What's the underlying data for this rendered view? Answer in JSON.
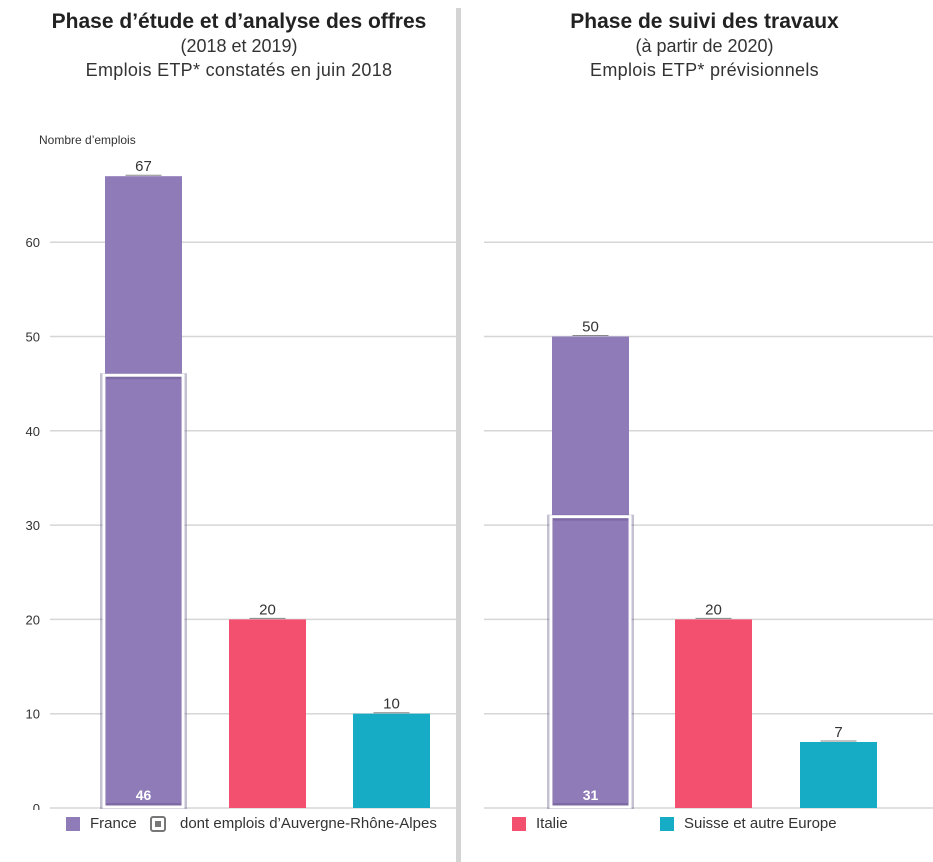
{
  "panels": {
    "left": {
      "title": "Phase d’étude et d’analyse des offres",
      "subtitle1": "(2018 et 2019)",
      "subtitle2": "Emplois ETP* constatés en juin 2018"
    },
    "right": {
      "title": "Phase de suivi des travaux",
      "subtitle1": "(à partir de 2020)",
      "subtitle2": "Emplois ETP* prévisionnels"
    }
  },
  "ylabel": "Nombre d’emplois",
  "legend": {
    "france": "France",
    "aura": "dont emplois d’Auvergne-Rhône-Alpes",
    "italie": "Italie",
    "suisse": "Suisse et autre Europe"
  },
  "colors": {
    "france": "#8f7bb8",
    "italie": "#f2506e",
    "suisse": "#17acc6",
    "grid": "#d6d6d6",
    "outline": "#ffffff"
  },
  "chart_data": [
    {
      "type": "bar",
      "title": "Phase d’étude et d’analyse des offres",
      "ylabel": "Nombre d’emplois",
      "ylim": [
        0,
        70
      ],
      "yticks": [
        0,
        10,
        20,
        30,
        40,
        50,
        60
      ],
      "grid": true,
      "categories": [
        "France",
        "Italie",
        "Suisse et autre Europe"
      ],
      "values": [
        67,
        20,
        10
      ],
      "value_labels": [
        "67",
        "20",
        "10"
      ],
      "subset": {
        "name": "dont emplois d’Auvergne-Rhône-Alpes",
        "category": "France",
        "value": 46,
        "label": "46"
      }
    },
    {
      "type": "bar",
      "title": "Phase de suivi des travaux",
      "ylim": [
        0,
        70
      ],
      "grid": true,
      "categories": [
        "France",
        "Italie",
        "Suisse et autre Europe"
      ],
      "values": [
        50,
        20,
        7
      ],
      "value_labels": [
        "50",
        "20",
        "7"
      ],
      "subset": {
        "name": "dont emplois d’Auvergne-Rhône-Alpes",
        "category": "France",
        "value": 31,
        "label": "31"
      }
    }
  ]
}
